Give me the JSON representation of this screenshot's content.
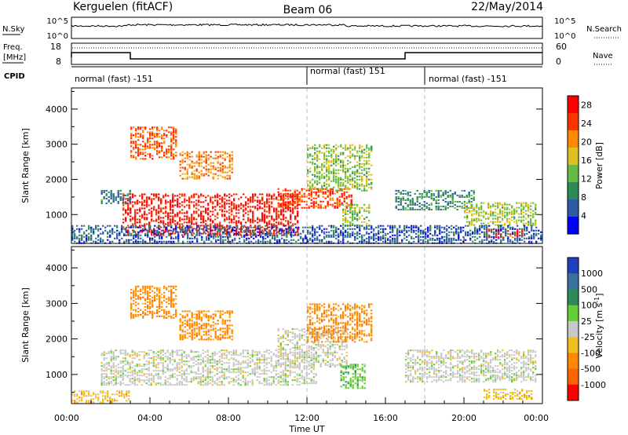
{
  "header": {
    "station": "Kerguelen (fitACF)",
    "beam": "Beam 06",
    "date": "22/May/2014"
  },
  "top_panels": {
    "nsky_label": "N.Sky",
    "nsky_ticks": [
      "10^5",
      "10^0"
    ],
    "nsearch_label": "N.Search",
    "nsearch_ticks": [
      "10^5",
      "10^0"
    ],
    "freq_label_1": "Freq.",
    "freq_label_2": "[MHz]",
    "freq_ticks": [
      "18",
      "8"
    ],
    "nave_label": "Nave",
    "nave_ticks": [
      "60",
      "0"
    ],
    "cpid_label": "CPID",
    "cpid_segments": [
      {
        "label": "normal (fast) -151",
        "start_hour": 0
      },
      {
        "label": "normal (fast) 151",
        "start_hour": 12
      },
      {
        "label": "normal (fast) -151",
        "start_hour": 18
      }
    ],
    "freq_steps": [
      {
        "start_hour": 0,
        "end_hour": 3,
        "level": "high"
      },
      {
        "start_hour": 3,
        "end_hour": 17,
        "level": "low"
      },
      {
        "start_hour": 17,
        "end_hour": 24,
        "level": "high"
      }
    ]
  },
  "chart_data": [
    {
      "type": "heatmap",
      "title": "",
      "xlabel": "Time UT",
      "ylabel": "Slant Range [km]",
      "xlim": [
        0,
        24
      ],
      "ylim": [
        180,
        4600
      ],
      "yticks": [
        "1000",
        "2000",
        "3000",
        "4000"
      ],
      "ytick_values": [
        1000,
        2000,
        3000,
        4000
      ],
      "colorbar_label": "Power [dB]",
      "colorbar_ticks": [
        "4",
        "8",
        "12",
        "16",
        "20",
        "24",
        "28"
      ],
      "colorbar_range": [
        0,
        30
      ],
      "colorscale": [
        "#0000ff",
        "#2e5aa8",
        "#2e8b57",
        "#66bb44",
        "#e0c020",
        "#ff8800",
        "#ff3300",
        "#ff0000"
      ],
      "regions": [
        {
          "start_hour": 2.6,
          "end_hour": 11.5,
          "low_km": 400,
          "high_km": 1600,
          "value": 27
        },
        {
          "start_hour": 10.5,
          "end_hour": 14.3,
          "low_km": 1200,
          "high_km": 1750,
          "value": 24
        },
        {
          "start_hour": 13.8,
          "end_hour": 15.2,
          "low_km": 700,
          "high_km": 1300,
          "value": 14
        },
        {
          "start_hour": 3.0,
          "end_hour": 5.4,
          "low_km": 2600,
          "high_km": 3500,
          "value": 23
        },
        {
          "start_hour": 5.5,
          "end_hour": 8.2,
          "low_km": 2000,
          "high_km": 2800,
          "value": 21
        },
        {
          "start_hour": 1.5,
          "end_hour": 3.0,
          "low_km": 1300,
          "high_km": 1700,
          "value": 8
        },
        {
          "start_hour": 12.0,
          "end_hour": 15.3,
          "low_km": 1700,
          "high_km": 3000,
          "value": 14
        },
        {
          "start_hour": 16.5,
          "end_hour": 20.5,
          "low_km": 1150,
          "high_km": 1700,
          "value": 9
        },
        {
          "start_hour": 20.0,
          "end_hour": 23.7,
          "low_km": 700,
          "high_km": 1350,
          "value": 15
        },
        {
          "start_hour": 21.0,
          "end_hour": 23.0,
          "low_km": 350,
          "high_km": 600,
          "value": 26
        },
        {
          "start_hour": 0.0,
          "end_hour": 24.0,
          "low_km": 200,
          "high_km": 700,
          "value": 6
        }
      ]
    },
    {
      "type": "heatmap",
      "title": "",
      "xlabel": "Time UT",
      "ylabel": "Slant Range [km]",
      "xlim": [
        0,
        24
      ],
      "ylim": [
        180,
        4600
      ],
      "xticks": [
        "00:00",
        "04:00",
        "08:00",
        "12:00",
        "16:00",
        "20:00",
        "00:00"
      ],
      "xtick_values": [
        0,
        4,
        8,
        12,
        16,
        20,
        24
      ],
      "yticks": [
        "1000",
        "2000",
        "3000",
        "4000"
      ],
      "ytick_values": [
        1000,
        2000,
        3000,
        4000
      ],
      "colorbar_label": "Velocity [m s^-1]",
      "colorbar_ticks": [
        "1000",
        "500",
        "100",
        "25",
        "-25",
        "-100",
        "-500",
        "-1000"
      ],
      "colorbar_colors": [
        "#2040c0",
        "#3a70a0",
        "#2e8b57",
        "#66cc33",
        "#c8c8c8",
        "#f0c020",
        "#ff8800",
        "#ff6600",
        "#ff0000"
      ],
      "regions": [
        {
          "start_hour": 1.5,
          "end_hour": 12.5,
          "low_km": 700,
          "high_km": 1700,
          "color_index": 4
        },
        {
          "start_hour": 10.5,
          "end_hour": 14.0,
          "low_km": 1200,
          "high_km": 2300,
          "color_index": 4
        },
        {
          "start_hour": 13.7,
          "end_hour": 15.0,
          "low_km": 600,
          "high_km": 1300,
          "color_index": 3
        },
        {
          "start_hour": 3.0,
          "end_hour": 5.4,
          "low_km": 2600,
          "high_km": 3500,
          "color_index": 6
        },
        {
          "start_hour": 5.5,
          "end_hour": 8.2,
          "low_km": 2000,
          "high_km": 2800,
          "color_index": 6
        },
        {
          "start_hour": 12.0,
          "end_hour": 15.3,
          "low_km": 1900,
          "high_km": 3000,
          "color_index": 6
        },
        {
          "start_hour": 17.0,
          "end_hour": 23.7,
          "low_km": 800,
          "high_km": 1700,
          "color_index": 4
        },
        {
          "start_hour": 21.0,
          "end_hour": 23.5,
          "low_km": 300,
          "high_km": 600,
          "color_index": 5
        },
        {
          "start_hour": 0.0,
          "end_hour": 3.0,
          "low_km": 200,
          "high_km": 550,
          "color_index": 5
        }
      ]
    }
  ]
}
